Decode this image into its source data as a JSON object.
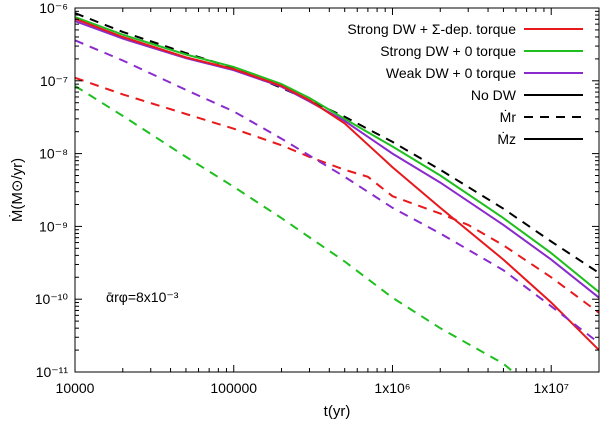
{
  "chart_data": {
    "type": "line",
    "xlabel": "t(yr)",
    "ylabel": "Ṁ(M⊙/yr)",
    "xscale": "log",
    "yscale": "log",
    "xlim": [
      10000,
      20000000
    ],
    "ylim": [
      1e-11,
      1e-06
    ],
    "x_ticks": [
      {
        "value": 10000,
        "label": "10000"
      },
      {
        "value": 100000,
        "label": "100000"
      },
      {
        "value": 1000000,
        "label": "1x10⁶"
      },
      {
        "value": 10000000,
        "label": "1x10⁷"
      }
    ],
    "y_ticks": [
      {
        "value": 1e-11,
        "label": "10⁻¹¹"
      },
      {
        "value": 1e-10,
        "label": "10⁻¹⁰"
      },
      {
        "value": 1e-09,
        "label": "10⁻⁹"
      },
      {
        "value": 1e-08,
        "label": "10⁻⁸"
      },
      {
        "value": 1e-07,
        "label": "10⁻⁷"
      },
      {
        "value": 1e-06,
        "label": "10⁻⁶"
      }
    ],
    "grid": false,
    "legend_position": "top-right",
    "legend": [
      {
        "label": "Strong DW + Σ-dep. torque",
        "color": "#e8191c",
        "style": "solid"
      },
      {
        "label": "Strong DW + 0 torque",
        "color": "#1fbf1f",
        "style": "solid"
      },
      {
        "label": "Weak DW + 0 torque",
        "color": "#8a2bcc",
        "style": "solid"
      },
      {
        "label": "No DW",
        "color": "#000000",
        "style": "solid"
      },
      {
        "label": "Ṁr",
        "color": "#000000",
        "style": "dashed"
      },
      {
        "label": "Ṁz",
        "color": "#000000",
        "style": "solid"
      }
    ],
    "annotation": "ᾱrφ=8x10⁻³",
    "series": [
      {
        "color": "#000000",
        "style": "dashed",
        "x": [
          10000,
          20000,
          50000,
          100000,
          200000,
          300000,
          500000,
          1000000,
          2000000,
          5000000,
          10000000,
          20000000
        ],
        "y": [
          8.5e-07,
          4.7e-07,
          2.4e-07,
          1.5e-07,
          8e-08,
          5.4e-08,
          3.2e-08,
          1.45e-08,
          6e-09,
          1.75e-09,
          6.2e-10,
          2.3e-10
        ]
      },
      {
        "color": "#1fbf1f",
        "style": "solid",
        "x": [
          10000,
          20000,
          50000,
          100000,
          200000,
          300000,
          500000,
          1000000,
          2000000,
          5000000,
          10000000,
          20000000
        ],
        "y": [
          7.5e-07,
          4.3e-07,
          2.3e-07,
          1.55e-07,
          9e-08,
          5.8e-08,
          3e-08,
          1.25e-08,
          5e-09,
          1.3e-09,
          4.3e-10,
          1.25e-10
        ]
      },
      {
        "color": "#8a2bcc",
        "style": "solid",
        "x": [
          10000,
          20000,
          50000,
          100000,
          200000,
          300000,
          500000,
          1000000,
          2000000,
          5000000,
          10000000,
          20000000
        ],
        "y": [
          6.6e-07,
          3.8e-07,
          2.05e-07,
          1.4e-07,
          8.3e-08,
          5.2e-08,
          2.8e-08,
          1e-08,
          4e-09,
          1.05e-09,
          3.5e-10,
          1.05e-10
        ]
      },
      {
        "color": "#e8191c",
        "style": "solid",
        "x": [
          10000,
          20000,
          50000,
          100000,
          200000,
          300000,
          500000,
          1000000,
          2000000,
          5000000,
          10000000,
          20000000
        ],
        "y": [
          7.1e-07,
          4e-07,
          2.1e-07,
          1.45e-07,
          8.5e-08,
          5.4e-08,
          2.6e-08,
          6.5e-09,
          1.8e-09,
          3.5e-10,
          9e-11,
          2e-11
        ]
      },
      {
        "color": "#e8191c",
        "style": "dashed",
        "x": [
          10000,
          20000,
          50000,
          100000,
          200000,
          300000,
          500000,
          700000,
          1000000,
          2000000,
          3000000,
          5000000,
          10000000,
          20000000
        ],
        "y": [
          1.1e-07,
          6.5e-08,
          3.5e-08,
          2.2e-08,
          1.3e-08,
          9e-09,
          6e-09,
          4.8e-09,
          2.6e-09,
          1.5e-09,
          1.05e-09,
          5.5e-10,
          2e-10,
          6.5e-11
        ]
      },
      {
        "color": "#8a2bcc",
        "style": "dashed",
        "x": [
          10000,
          20000,
          50000,
          100000,
          200000,
          500000,
          1000000,
          2000000,
          5000000,
          10000000,
          20000000
        ],
        "y": [
          3.6e-07,
          1.9e-07,
          7.5e-08,
          3.8e-08,
          1.6e-08,
          4.8e-09,
          1.8e-09,
          8e-10,
          2.5e-10,
          8e-11,
          2.5e-11
        ]
      },
      {
        "color": "#1fbf1f",
        "style": "dashed",
        "x": [
          10000,
          20000,
          50000,
          100000,
          200000,
          500000,
          1000000,
          2000000,
          5000000,
          7000000
        ],
        "y": [
          8.5e-08,
          3.3e-08,
          9e-09,
          3.5e-09,
          1.3e-09,
          3.3e-10,
          1.05e-10,
          4e-11,
          1.3e-11,
          7e-12
        ]
      }
    ]
  }
}
